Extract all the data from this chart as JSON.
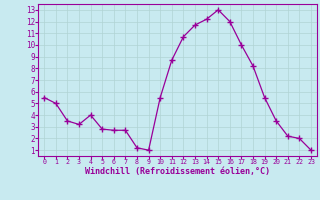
{
  "x": [
    0,
    1,
    2,
    3,
    4,
    5,
    6,
    7,
    8,
    9,
    10,
    11,
    12,
    13,
    14,
    15,
    16,
    17,
    18,
    19,
    20,
    21,
    22,
    23
  ],
  "y": [
    5.5,
    5.0,
    3.5,
    3.2,
    4.0,
    2.8,
    2.7,
    2.7,
    1.2,
    1.0,
    5.5,
    8.7,
    10.7,
    11.7,
    12.2,
    13.0,
    12.0,
    10.0,
    8.2,
    5.5,
    3.5,
    2.2,
    2.0,
    1.0
  ],
  "xlim": [
    -0.5,
    23.5
  ],
  "ylim": [
    0.5,
    13.5
  ],
  "yticks": [
    1,
    2,
    3,
    4,
    5,
    6,
    7,
    8,
    9,
    10,
    11,
    12,
    13
  ],
  "xtick_labels": [
    "0",
    "1",
    "2",
    "3",
    "4",
    "5",
    "6",
    "7",
    "8",
    "9",
    "10",
    "11",
    "12",
    "13",
    "14",
    "15",
    "16",
    "17",
    "18",
    "19",
    "20",
    "21",
    "22",
    "23"
  ],
  "xlabel": "Windchill (Refroidissement éolien,°C)",
  "line_color": "#990099",
  "marker_color": "#990099",
  "bg_color": "#c8eaf0",
  "grid_color": "#b0d4d4",
  "axis_label_color": "#990099",
  "tick_color": "#990099",
  "spine_color": "#990099",
  "xlabel_fontsize": 6.0,
  "tick_fontsize_x": 4.8,
  "tick_fontsize_y": 5.5
}
